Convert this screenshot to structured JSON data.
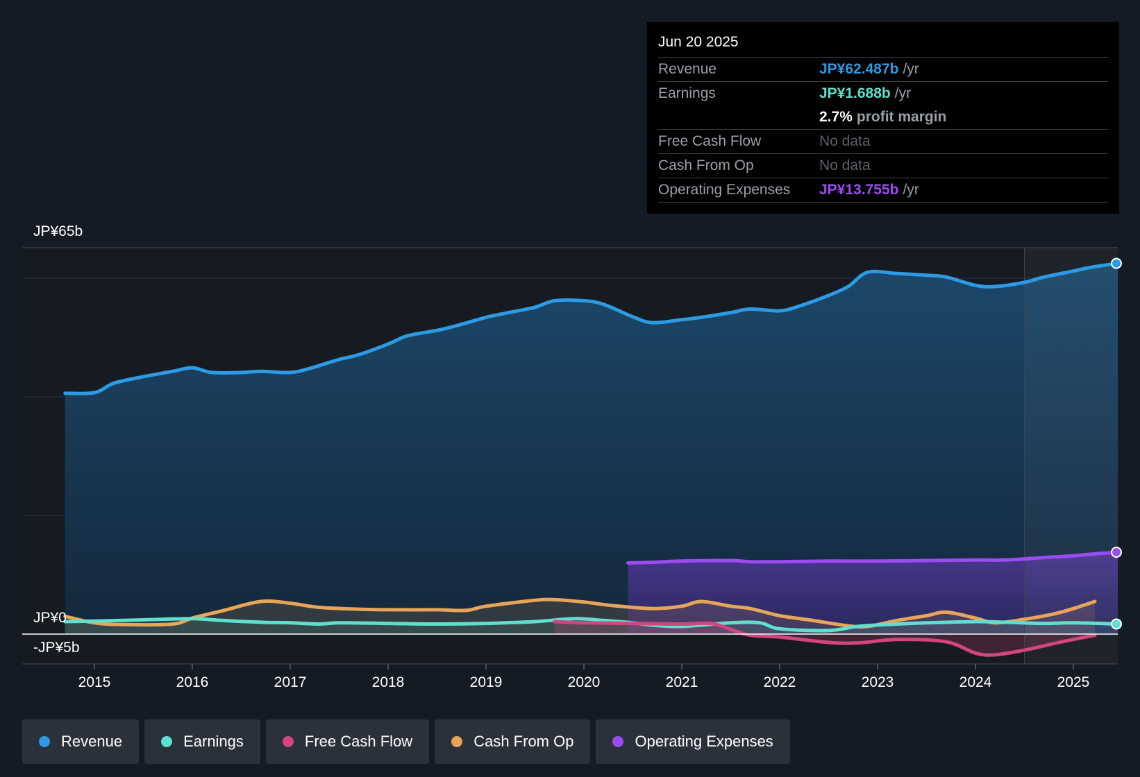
{
  "tooltip": {
    "date": "Jun 20 2025",
    "revenue": {
      "label": "Revenue",
      "value": "JP¥62.487b",
      "unit": "/yr"
    },
    "earnings": {
      "label": "Earnings",
      "value": "JP¥1.688b",
      "unit": "/yr"
    },
    "margin": {
      "value": "2.7%",
      "label": "profit margin"
    },
    "fcf": {
      "label": "Free Cash Flow",
      "value": "No data"
    },
    "cfo": {
      "label": "Cash From Op",
      "value": "No data"
    },
    "opex": {
      "label": "Operating Expenses",
      "value": "JP¥13.755b",
      "unit": "/yr"
    }
  },
  "legend": {
    "revenue": "Revenue",
    "earnings": "Earnings",
    "fcf": "Free Cash Flow",
    "cfo": "Cash From Op",
    "opex": "Operating Expenses"
  },
  "colors": {
    "revenue": "#2d9be4",
    "earnings": "#5ee0cc",
    "fcf": "#d2457f",
    "cfo": "#e8a55a",
    "opex": "#9b4cf0"
  },
  "chart_data": {
    "type": "line",
    "title": "",
    "y_top_label": "JP¥65b",
    "y_zero_label": "JP¥0",
    "y_bottom_label": "-JP¥5b",
    "ylim": [
      -5,
      65
    ],
    "xlim": [
      2014.5,
      2025.7
    ],
    "x_ticks": [
      "2015",
      "2016",
      "2017",
      "2018",
      "2019",
      "2020",
      "2021",
      "2022",
      "2023",
      "2024",
      "2025"
    ],
    "forecast_start": 2024.5,
    "series": [
      {
        "name": "Revenue",
        "key": "revenue",
        "points": [
          [
            2014.7,
            40.6
          ],
          [
            2015.0,
            40.7
          ],
          [
            2015.2,
            42.3
          ],
          [
            2015.5,
            43.4
          ],
          [
            2015.8,
            44.3
          ],
          [
            2016.0,
            44.9
          ],
          [
            2016.2,
            44.1
          ],
          [
            2016.5,
            44.1
          ],
          [
            2016.7,
            44.3
          ],
          [
            2017.0,
            44.1
          ],
          [
            2017.2,
            44.8
          ],
          [
            2017.5,
            46.3
          ],
          [
            2017.7,
            47.1
          ],
          [
            2018.0,
            48.9
          ],
          [
            2018.2,
            50.3
          ],
          [
            2018.5,
            51.2
          ],
          [
            2018.7,
            52.0
          ],
          [
            2019.0,
            53.4
          ],
          [
            2019.2,
            54.1
          ],
          [
            2019.5,
            55.1
          ],
          [
            2019.7,
            56.2
          ],
          [
            2020.0,
            56.2
          ],
          [
            2020.2,
            55.6
          ],
          [
            2020.5,
            53.5
          ],
          [
            2020.7,
            52.5
          ],
          [
            2021.0,
            53.0
          ],
          [
            2021.2,
            53.4
          ],
          [
            2021.5,
            54.2
          ],
          [
            2021.7,
            54.8
          ],
          [
            2022.0,
            54.5
          ],
          [
            2022.2,
            55.3
          ],
          [
            2022.5,
            57.1
          ],
          [
            2022.7,
            58.6
          ],
          [
            2022.9,
            61.0
          ],
          [
            2023.2,
            60.8
          ],
          [
            2023.5,
            60.5
          ],
          [
            2023.7,
            60.2
          ],
          [
            2024.0,
            58.8
          ],
          [
            2024.2,
            58.6
          ],
          [
            2024.5,
            59.3
          ],
          [
            2024.7,
            60.2
          ],
          [
            2025.0,
            61.2
          ],
          [
            2025.2,
            61.9
          ],
          [
            2025.45,
            62.5
          ]
        ]
      },
      {
        "name": "Earnings",
        "key": "earnings",
        "points": [
          [
            2014.7,
            2.1
          ],
          [
            2015.0,
            2.2
          ],
          [
            2015.5,
            2.4
          ],
          [
            2016.0,
            2.6
          ],
          [
            2016.3,
            2.3
          ],
          [
            2016.7,
            2.0
          ],
          [
            2017.0,
            1.9
          ],
          [
            2017.3,
            1.7
          ],
          [
            2017.5,
            1.9
          ],
          [
            2018.0,
            1.8
          ],
          [
            2018.5,
            1.7
          ],
          [
            2019.0,
            1.8
          ],
          [
            2019.5,
            2.1
          ],
          [
            2019.9,
            2.6
          ],
          [
            2020.2,
            2.3
          ],
          [
            2020.5,
            1.9
          ],
          [
            2020.7,
            1.5
          ],
          [
            2021.0,
            1.3
          ],
          [
            2021.5,
            1.9
          ],
          [
            2021.8,
            1.9
          ],
          [
            2022.0,
            0.9
          ],
          [
            2022.5,
            0.6
          ],
          [
            2022.8,
            1.3
          ],
          [
            2023.2,
            1.7
          ],
          [
            2023.5,
            1.9
          ],
          [
            2024.0,
            2.1
          ],
          [
            2024.3,
            2.0
          ],
          [
            2024.7,
            1.8
          ],
          [
            2025.0,
            1.9
          ],
          [
            2025.45,
            1.7
          ]
        ]
      },
      {
        "name": "Free Cash Flow",
        "key": "fcf",
        "points": [
          [
            2019.7,
            2.1
          ],
          [
            2020.0,
            1.9
          ],
          [
            2020.5,
            1.8
          ],
          [
            2021.0,
            1.7
          ],
          [
            2021.3,
            1.8
          ],
          [
            2021.5,
            0.8
          ],
          [
            2021.7,
            -0.2
          ],
          [
            2022.0,
            -0.5
          ],
          [
            2022.5,
            -1.4
          ],
          [
            2022.8,
            -1.5
          ],
          [
            2023.2,
            -0.9
          ],
          [
            2023.7,
            -1.3
          ],
          [
            2024.0,
            -3.2
          ],
          [
            2024.2,
            -3.5
          ],
          [
            2024.5,
            -2.7
          ],
          [
            2024.8,
            -1.6
          ],
          [
            2025.0,
            -0.9
          ],
          [
            2025.22,
            -0.2
          ]
        ]
      },
      {
        "name": "Cash From Op",
        "key": "cfo",
        "points": [
          [
            2014.7,
            3.0
          ],
          [
            2015.0,
            1.9
          ],
          [
            2015.3,
            1.6
          ],
          [
            2015.8,
            1.7
          ],
          [
            2016.0,
            2.7
          ],
          [
            2016.3,
            3.9
          ],
          [
            2016.7,
            5.5
          ],
          [
            2017.0,
            5.2
          ],
          [
            2017.3,
            4.5
          ],
          [
            2017.7,
            4.2
          ],
          [
            2018.0,
            4.1
          ],
          [
            2018.5,
            4.1
          ],
          [
            2018.8,
            4.0
          ],
          [
            2019.0,
            4.7
          ],
          [
            2019.5,
            5.7
          ],
          [
            2019.7,
            5.8
          ],
          [
            2020.0,
            5.4
          ],
          [
            2020.3,
            4.8
          ],
          [
            2020.7,
            4.3
          ],
          [
            2021.0,
            4.7
          ],
          [
            2021.2,
            5.5
          ],
          [
            2021.5,
            4.7
          ],
          [
            2021.7,
            4.3
          ],
          [
            2022.0,
            3.1
          ],
          [
            2022.3,
            2.4
          ],
          [
            2022.7,
            1.4
          ],
          [
            2022.9,
            1.3
          ],
          [
            2023.2,
            2.3
          ],
          [
            2023.5,
            3.1
          ],
          [
            2023.7,
            3.7
          ],
          [
            2024.0,
            2.7
          ],
          [
            2024.2,
            1.9
          ],
          [
            2024.5,
            2.5
          ],
          [
            2024.8,
            3.4
          ],
          [
            2025.0,
            4.3
          ],
          [
            2025.22,
            5.5
          ]
        ]
      },
      {
        "name": "Operating Expenses",
        "key": "opex",
        "points": [
          [
            2020.45,
            12.0
          ],
          [
            2020.7,
            12.1
          ],
          [
            2021.0,
            12.3
          ],
          [
            2021.5,
            12.4
          ],
          [
            2021.7,
            12.2
          ],
          [
            2022.0,
            12.2
          ],
          [
            2022.5,
            12.3
          ],
          [
            2023.0,
            12.3
          ],
          [
            2023.5,
            12.4
          ],
          [
            2024.0,
            12.5
          ],
          [
            2024.3,
            12.5
          ],
          [
            2024.7,
            12.9
          ],
          [
            2025.0,
            13.2
          ],
          [
            2025.2,
            13.5
          ],
          [
            2025.45,
            13.8
          ]
        ]
      }
    ]
  }
}
